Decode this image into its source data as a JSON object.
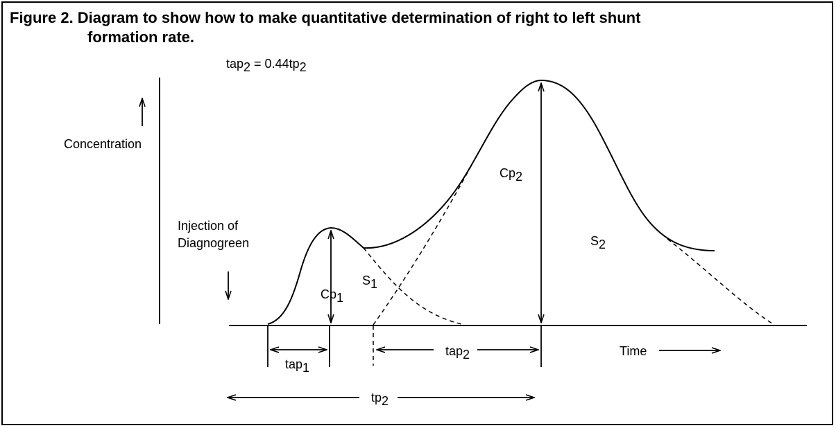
{
  "caption": {
    "line1": "Figure 2. Diagram to show how to make quantitative determination of right to left shunt",
    "line2": "formation rate."
  },
  "formula": {
    "a": "tap",
    "a_sub": "2",
    "b": " = 0.44tp",
    "b_sub": "2"
  },
  "labels": {
    "concentration": "Concentration",
    "injection_line1": "Injection of",
    "injection_line2": "Diagnogreen",
    "cp1": "Cp",
    "cp1_sub": "1",
    "s1": "S",
    "s1_sub": "1",
    "cp2": "Cp",
    "cp2_sub": "2",
    "s2": "S",
    "s2_sub": "2",
    "tap1": "tap",
    "tap1_sub": "1",
    "tap2": "tap",
    "tap2_sub": "2",
    "time": "Time",
    "tp2": "tp",
    "tp2_sub": "2"
  }
}
